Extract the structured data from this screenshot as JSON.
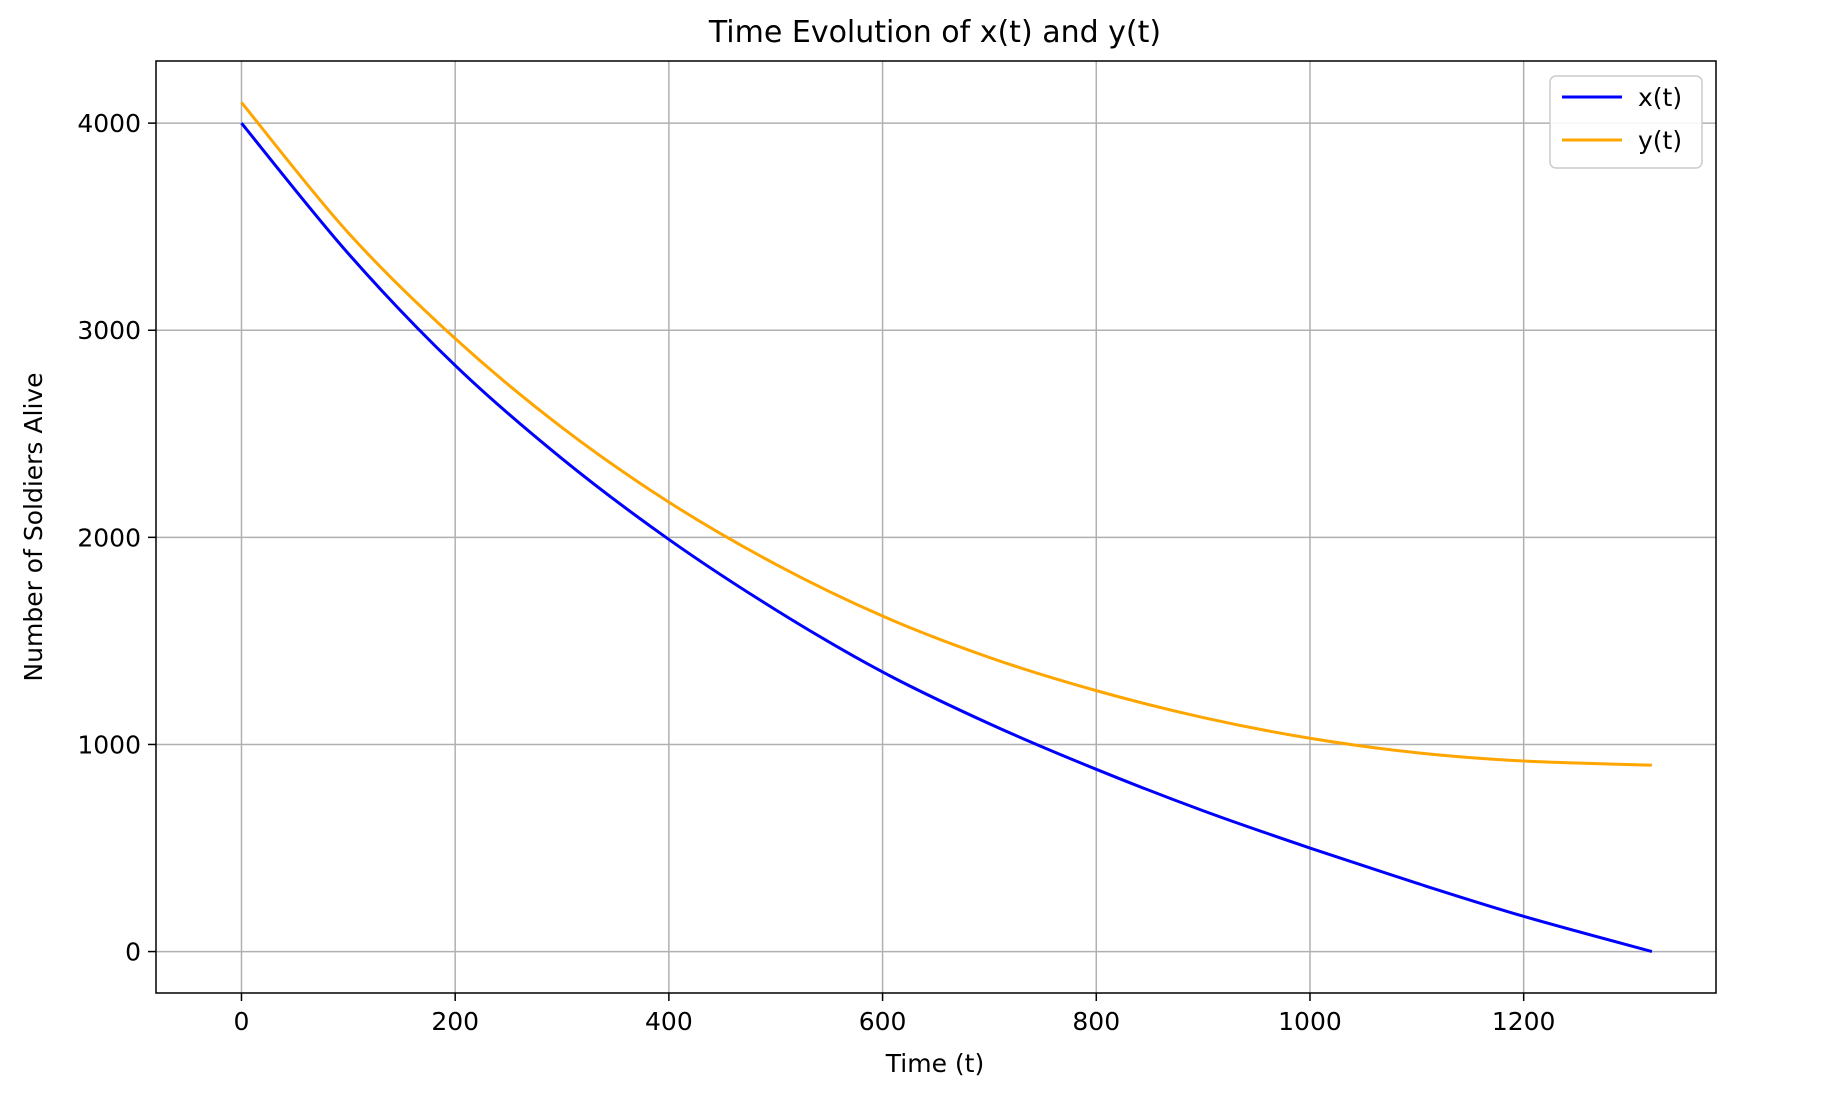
{
  "chart_data": {
    "type": "line",
    "title": "Time Evolution of x(t) and y(t)",
    "xlabel": "Time (t)",
    "ylabel": "Number of Soldiers Alive",
    "xlim": [
      -80,
      1380
    ],
    "ylim": [
      -200,
      4300
    ],
    "xticks": [
      0,
      200,
      400,
      600,
      800,
      1000,
      1200
    ],
    "yticks": [
      0,
      1000,
      2000,
      3000,
      4000
    ],
    "xtick_labels": [
      "0",
      "200",
      "400",
      "600",
      "800",
      "1000",
      "1200"
    ],
    "ytick_labels": [
      "0",
      "1000",
      "2000",
      "3000",
      "4000"
    ],
    "grid": true,
    "legend_position": "top-right",
    "series": [
      {
        "name": "x(t)",
        "color": "#0000ff",
        "x": [
          0,
          100,
          200,
          300,
          400,
          500,
          600,
          700,
          800,
          900,
          1000,
          1100,
          1200,
          1320
        ],
        "y": [
          4000,
          3370,
          2830,
          2380,
          1990,
          1650,
          1350,
          1100,
          880,
          680,
          500,
          330,
          170,
          0
        ]
      },
      {
        "name": "y(t)",
        "color": "#ffa500",
        "x": [
          0,
          100,
          200,
          300,
          400,
          500,
          600,
          700,
          800,
          900,
          1000,
          1100,
          1200,
          1320
        ],
        "y": [
          4100,
          3470,
          2960,
          2530,
          2170,
          1870,
          1620,
          1420,
          1260,
          1130,
          1030,
          960,
          920,
          900
        ]
      }
    ]
  }
}
